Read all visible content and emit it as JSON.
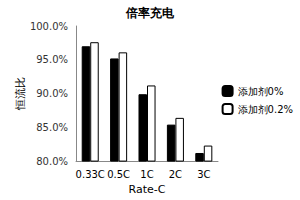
{
  "chart_data": {
    "type": "bar",
    "title": "倍率充电",
    "x_label": "Rate-C",
    "y_label": "恒流比",
    "categories": [
      "0.33C",
      "0.5C",
      "1C",
      "2C",
      "3C"
    ],
    "series": [
      {
        "name": "添加剂0%",
        "color": "#000000",
        "values": [
          97.0,
          95.2,
          89.9,
          85.4,
          81.2
        ]
      },
      {
        "name": "添加剂0.2%",
        "color": "#ffffff",
        "values": [
          97.6,
          96.1,
          91.2,
          86.4,
          82.3
        ]
      }
    ],
    "ylim": [
      80,
      100
    ],
    "yticks": [
      {
        "value": 80,
        "label": "80.0%"
      },
      {
        "value": 85,
        "label": "85.0%"
      },
      {
        "value": 90,
        "label": "90.0%"
      },
      {
        "value": 95,
        "label": "95.0%"
      },
      {
        "value": 100,
        "label": "100.0%"
      }
    ],
    "legend": "right",
    "grid": false
  }
}
